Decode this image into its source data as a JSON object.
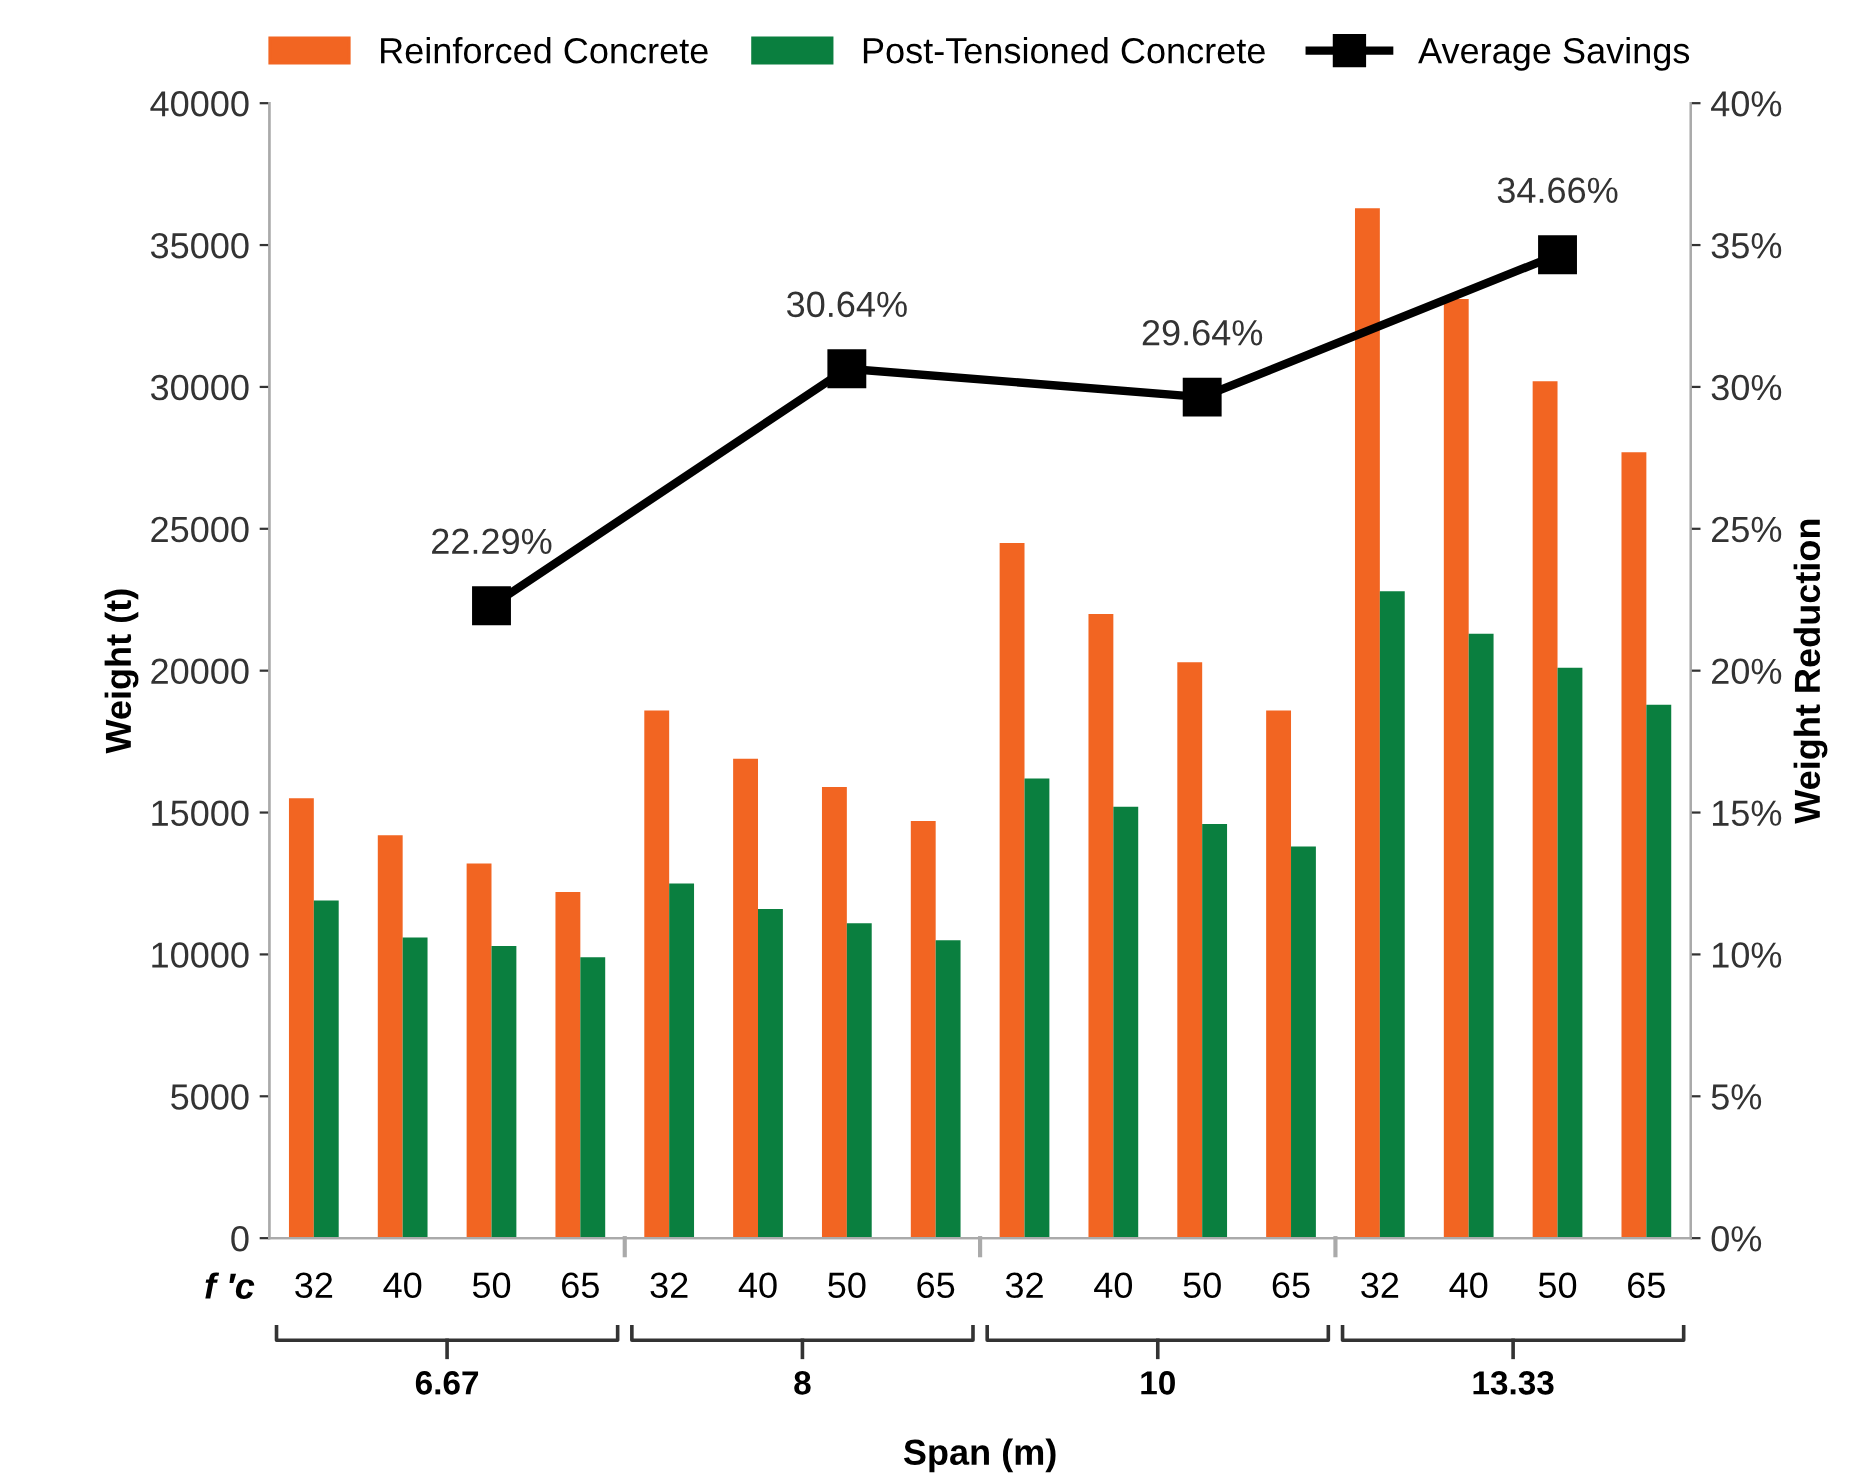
{
  "chart_data": {
    "type": "bar",
    "xlabel": "Span (m)",
    "ylabel": "Weight (t)",
    "y2label": "Weight Reduction",
    "categories": [
      "32",
      "40",
      "50",
      "65",
      "32",
      "40",
      "50",
      "65",
      "32",
      "40",
      "50",
      "65",
      "32",
      "40",
      "50",
      "65"
    ],
    "series": [
      {
        "name": "Reinforced Concrete",
        "color": "#f26522",
        "values": [
          15500,
          14200,
          13200,
          12200,
          18600,
          16900,
          15900,
          14700,
          24500,
          22000,
          20300,
          18600,
          36300,
          33100,
          30200,
          27700
        ]
      },
      {
        "name": "Post-Tensioned Concrete",
        "color": "#0a7f3f",
        "values": [
          11900,
          10600,
          10300,
          9900,
          12500,
          11600,
          11100,
          10500,
          16200,
          15200,
          14600,
          13800,
          22800,
          21300,
          20100,
          18800
        ]
      },
      {
        "name": "Average Savings",
        "type": "line",
        "axis": "y2",
        "color": "#000000",
        "marker": "square",
        "values": [
          null,
          null,
          22.29,
          null,
          null,
          null,
          30.64,
          null,
          null,
          null,
          29.64,
          null,
          null,
          null,
          34.66,
          null
        ],
        "value_labels": [
          null,
          null,
          "22.29%",
          null,
          null,
          null,
          "30.64%",
          null,
          null,
          null,
          "29.64%",
          null,
          null,
          null,
          "34.66%",
          null
        ]
      }
    ],
    "ylim": [
      0,
      40000
    ],
    "yticks": [
      0,
      5000,
      10000,
      15000,
      20000,
      25000,
      30000,
      35000,
      40000
    ],
    "y2lim": [
      0,
      40
    ],
    "y2ticks": [
      {
        "value": 0,
        "label": "0%"
      },
      {
        "value": 5,
        "label": "5%"
      },
      {
        "value": 10,
        "label": "10%"
      },
      {
        "value": 15,
        "label": "15%"
      },
      {
        "value": 20,
        "label": "20%"
      },
      {
        "value": 25,
        "label": "25%"
      },
      {
        "value": 30,
        "label": "30%"
      },
      {
        "value": 35,
        "label": "35%"
      },
      {
        "value": 40,
        "label": "40%"
      }
    ],
    "annotations": [
      "f ′c",
      "6.67",
      "8",
      "10",
      "13.33"
    ],
    "legend": "top",
    "grid": false
  }
}
